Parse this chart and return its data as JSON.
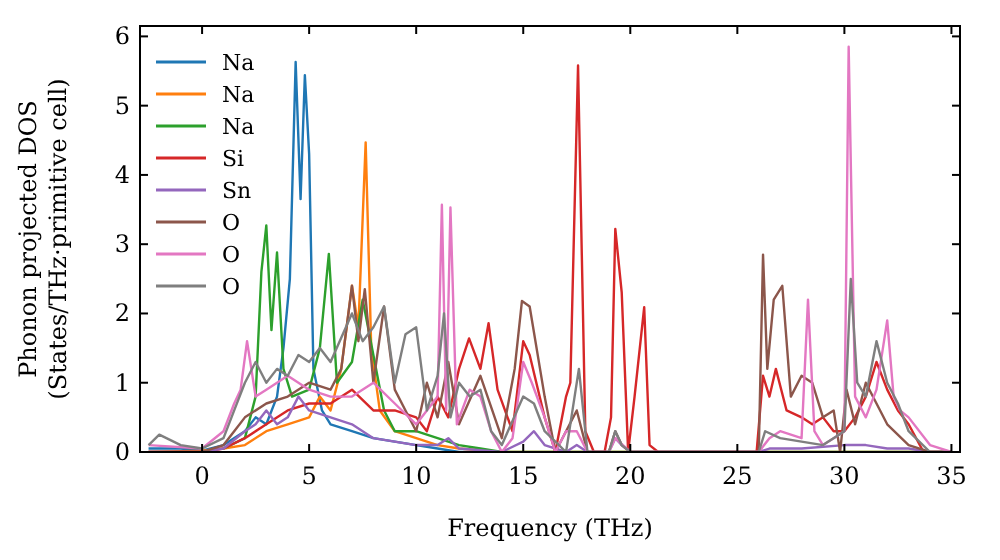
{
  "chart_data": {
    "type": "line",
    "xlabel": "Frequency (THz)",
    "ylabel": "Phonon projected DOS\n(States/THz·primitive cell)",
    "xlim": [
      -2.9,
      35.4
    ],
    "ylim": [
      0,
      6.15
    ],
    "xticks": [
      0,
      5,
      10,
      15,
      20,
      25,
      30,
      35
    ],
    "yticks": [
      0,
      1,
      2,
      3,
      4,
      5,
      6
    ],
    "grid": false,
    "legend": "top left",
    "marker": "none",
    "line_style": "solid",
    "series": [
      {
        "name": "Na",
        "color": "#1f77b4",
        "x": [
          -2.5,
          -1,
          0,
          1,
          2,
          2.5,
          3,
          3.5,
          3.8,
          4.1,
          4.37,
          4.6,
          4.8,
          5.0,
          5.2,
          5.6,
          6,
          7,
          8,
          9,
          10,
          11,
          12,
          14
        ],
        "values": [
          0.05,
          0.05,
          0.02,
          0.1,
          0.3,
          0.5,
          0.4,
          0.8,
          1.5,
          2.5,
          5.63,
          3.65,
          5.44,
          4.3,
          1.2,
          0.6,
          0.4,
          0.3,
          0.2,
          0.15,
          0.1,
          0.05,
          0,
          0
        ]
      },
      {
        "name": "Na",
        "color": "#ff7f0e",
        "x": [
          -2.5,
          0,
          1,
          2,
          3,
          4,
          5,
          5.5,
          6,
          6.5,
          7,
          7.3,
          7.64,
          7.9,
          8.3,
          9,
          10,
          11,
          12,
          14,
          35
        ],
        "values": [
          0,
          0.02,
          0.05,
          0.1,
          0.3,
          0.4,
          0.5,
          0.8,
          0.6,
          1.2,
          2.4,
          1.8,
          4.47,
          1.5,
          0.6,
          0.3,
          0.2,
          0.1,
          0.05,
          0,
          0
        ]
      },
      {
        "name": "Na",
        "color": "#2ca02c",
        "x": [
          1,
          2,
          2.5,
          2.77,
          3.0,
          3.24,
          3.5,
          3.8,
          4.2,
          5,
          5.5,
          5.92,
          6.3,
          7,
          7.5,
          8,
          8.5,
          9,
          10,
          11,
          12,
          13,
          14,
          20,
          35
        ],
        "values": [
          0.05,
          0.2,
          0.8,
          2.6,
          3.27,
          1.76,
          2.88,
          1.2,
          0.8,
          0.9,
          1.5,
          2.86,
          1.0,
          1.3,
          2.2,
          1.4,
          0.6,
          0.3,
          0.3,
          0.2,
          0.1,
          0.05,
          0,
          0,
          0
        ]
      },
      {
        "name": "Si",
        "color": "#d62728",
        "x": [
          -2.5,
          0,
          1,
          2,
          3,
          4,
          5,
          6,
          7,
          8,
          9,
          10,
          10.5,
          11,
          11.5,
          12,
          12.47,
          13,
          13.38,
          13.8,
          14.5,
          15,
          15.3,
          16,
          16.5,
          17,
          17.2,
          17.56,
          17.9,
          18.3,
          18.8,
          19.1,
          19.3,
          19.6,
          19.9,
          20.2,
          20.65,
          20.9,
          21.3,
          25.9,
          26.2,
          26.5,
          26.8,
          27.3,
          28,
          28.5,
          29,
          29.5,
          30,
          30.5,
          31,
          31.5,
          32,
          32.5,
          33,
          33.7,
          35
        ],
        "values": [
          0,
          0,
          0.05,
          0.2,
          0.4,
          0.6,
          0.7,
          0.7,
          0.9,
          0.6,
          0.6,
          0.5,
          0.3,
          0.8,
          0.5,
          1.2,
          1.64,
          1.2,
          1.86,
          0.9,
          0.3,
          1.6,
          1.4,
          0.5,
          0,
          0.8,
          1.0,
          5.58,
          0.3,
          0,
          0,
          0.5,
          3.22,
          2.3,
          0,
          0.8,
          2.09,
          0.1,
          0,
          0,
          1.1,
          0.8,
          1.2,
          0.6,
          0.5,
          0.4,
          0.5,
          0.3,
          0.3,
          0.5,
          0.8,
          1.3,
          0.9,
          0.6,
          0.4,
          0,
          0
        ]
      },
      {
        "name": "Sn",
        "color": "#9467bd",
        "x": [
          -2.5,
          0,
          1,
          2,
          2.5,
          3,
          3.5,
          4,
          4.5,
          5,
          6,
          7,
          8,
          9,
          10,
          11,
          11.5,
          12,
          14,
          15,
          15.5,
          16,
          17,
          17.5,
          18,
          19,
          19.3,
          19.6,
          20,
          21,
          26,
          26.5,
          28,
          30,
          31,
          32,
          33,
          34,
          35
        ],
        "values": [
          0,
          0,
          0.05,
          0.3,
          0.4,
          0.6,
          0.4,
          0.5,
          0.8,
          0.6,
          0.5,
          0.4,
          0.2,
          0.15,
          0.1,
          0.1,
          0.2,
          0.05,
          0,
          0.15,
          0.3,
          0.1,
          0,
          0.1,
          0,
          0,
          0.2,
          0.1,
          0,
          0,
          0,
          0.05,
          0.05,
          0.1,
          0.1,
          0.05,
          0.05,
          0,
          0
        ]
      },
      {
        "name": "O",
        "color": "#8c564b",
        "x": [
          -2.5,
          0,
          1,
          1.5,
          2,
          3,
          4,
          5,
          6,
          6.5,
          7,
          7.3,
          7.6,
          8,
          8.5,
          9,
          9.5,
          10,
          10.5,
          11,
          11.5,
          12,
          13,
          14,
          14.6,
          14.94,
          15.3,
          16,
          16.5,
          17,
          17.5,
          18,
          18.5,
          19,
          19.3,
          19.6,
          20,
          26,
          26.2,
          26.4,
          26.7,
          27.1,
          27.5,
          28,
          28.5,
          29,
          29.5,
          29.8,
          30.1,
          30.5,
          31,
          31.5,
          32,
          33,
          34,
          35
        ],
        "values": [
          0,
          0,
          0.1,
          0.3,
          0.5,
          0.7,
          0.8,
          1.0,
          0.9,
          1.2,
          2.4,
          1.6,
          2.35,
          1.0,
          2.1,
          0.9,
          0.6,
          0.3,
          1.0,
          0.5,
          1.3,
          0.4,
          1.1,
          0.2,
          1.2,
          2.18,
          2.1,
          0.8,
          0,
          0.3,
          0.6,
          0,
          0,
          0,
          0.3,
          0.1,
          0,
          0,
          2.85,
          1.2,
          2.2,
          2.4,
          0.8,
          1.1,
          1.0,
          0.5,
          0.6,
          0,
          0.9,
          0.4,
          1.0,
          0.7,
          0.4,
          0.1,
          0,
          0
        ]
      },
      {
        "name": "O",
        "color": "#e377c2",
        "x": [
          -2.5,
          0,
          1,
          1.5,
          1.8,
          2.1,
          2.5,
          3,
          4,
          5,
          6,
          7,
          8,
          9,
          10,
          10.5,
          11.0,
          11.2,
          11.4,
          11.6,
          11.9,
          12.5,
          13,
          13.5,
          14,
          14.5,
          15,
          15.4,
          16,
          16.5,
          17,
          17.5,
          18,
          19,
          19.3,
          20,
          26,
          26.5,
          27,
          28,
          28.3,
          28.6,
          29,
          29.5,
          30,
          30.2,
          30.5,
          31,
          31.5,
          32,
          32.3,
          32.6,
          33,
          34,
          35
        ],
        "values": [
          0.1,
          0.05,
          0.3,
          0.7,
          0.9,
          1.6,
          0.8,
          0.9,
          1.1,
          0.9,
          0.8,
          0.8,
          1.0,
          0.7,
          0.4,
          0.6,
          0.8,
          3.57,
          0.6,
          3.53,
          0.4,
          0.9,
          0.8,
          0.3,
          0,
          0.2,
          1.3,
          1.0,
          0.5,
          0,
          0.3,
          0.3,
          0,
          0,
          0.2,
          0,
          0,
          0.2,
          0.3,
          0.2,
          2.2,
          0.3,
          0.1,
          0.2,
          0.3,
          5.85,
          0.8,
          0.5,
          0.9,
          1.9,
          0.8,
          0.6,
          0.5,
          0.1,
          0
        ]
      },
      {
        "name": "O",
        "color": "#7f7f7f",
        "x": [
          -2.5,
          -2,
          -1,
          0,
          1,
          1.5,
          2,
          2.5,
          3,
          3.5,
          4,
          4.5,
          5,
          5.5,
          6,
          7,
          7.5,
          8,
          8.5,
          9,
          9.5,
          10,
          10.5,
          11,
          11.3,
          11.6,
          12,
          12.5,
          13,
          13.5,
          14,
          15,
          15.5,
          16,
          17,
          17.3,
          17.6,
          18,
          19,
          19.3,
          19.6,
          20,
          26,
          26.3,
          27,
          28,
          29,
          30,
          30.3,
          30.6,
          31,
          31.5,
          32,
          32.5,
          33,
          34,
          35
        ],
        "values": [
          0.1,
          0.25,
          0.1,
          0.05,
          0.2,
          0.6,
          1.0,
          1.3,
          1.0,
          1.2,
          1.1,
          1.4,
          1.3,
          1.5,
          1.3,
          2.0,
          1.6,
          1.8,
          2.1,
          1.0,
          1.7,
          1.8,
          0.6,
          1.1,
          2.0,
          0.5,
          1.0,
          0.8,
          0.9,
          0.3,
          0.1,
          0.8,
          0.7,
          0.3,
          0,
          0.6,
          1.2,
          0,
          0,
          0.3,
          0.1,
          0,
          0,
          0.3,
          0.2,
          0.15,
          0.1,
          0.3,
          2.5,
          1.0,
          0.8,
          1.6,
          1.0,
          0.7,
          0.3,
          0,
          0
        ]
      }
    ]
  }
}
